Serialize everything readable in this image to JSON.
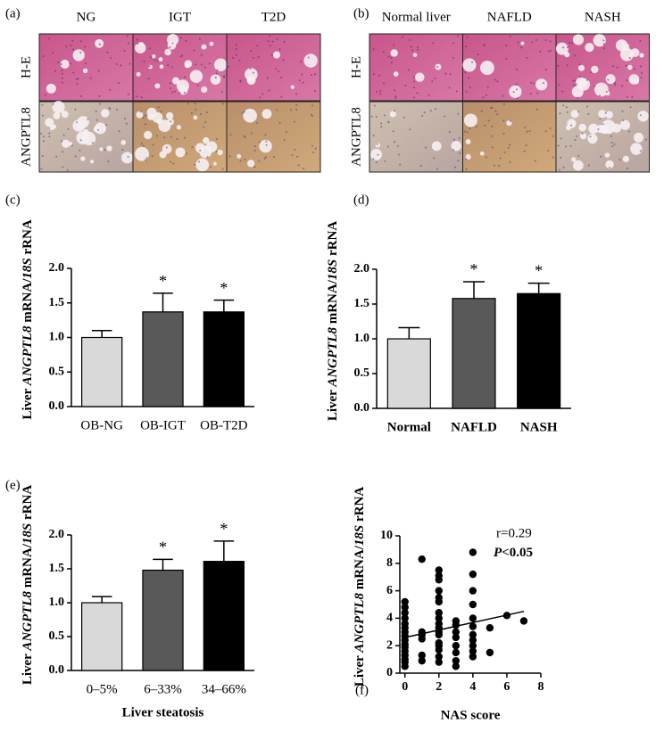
{
  "histology": [
    {
      "panel": "(a)",
      "columns": [
        "NG",
        "IGT",
        "T2D"
      ],
      "rows": [
        "H-E",
        "ANGPTL8"
      ]
    },
    {
      "panel": "(b)",
      "columns": [
        "Normal liver",
        "NAFLD",
        "NASH"
      ],
      "rows": [
        "H-E",
        "ANGPTL8"
      ]
    }
  ],
  "chart_data": [
    {
      "type": "bar",
      "panel": "(c)",
      "y_label": [
        "Liver ",
        "ANGPTL8",
        " mRNA/",
        "18S",
        " rRNA"
      ],
      "categories": [
        "OB-NG",
        "OB-IGT",
        "OB-T2D"
      ],
      "values": [
        1.0,
        1.37,
        1.37
      ],
      "errors": [
        0.1,
        0.27,
        0.17
      ],
      "colors": [
        "#d9d9d9",
        "#595959",
        "#000000"
      ],
      "significance": [
        null,
        "*",
        "*"
      ],
      "ylim": [
        0,
        2.0
      ],
      "yticks": [
        {
          "value": 0,
          "label": "0.0"
        },
        0.5,
        {
          "value": 1,
          "label": "1.0"
        },
        1.5,
        {
          "value": 2,
          "label": "2.0"
        }
      ]
    },
    {
      "type": "bar",
      "panel": "(d)",
      "y_label": [
        "Liver ",
        "ANGPTL8",
        " mRNA/",
        "18S",
        " rRNA"
      ],
      "categories": [
        "Normal",
        "NAFLD",
        "NASH"
      ],
      "values": [
        1.0,
        1.58,
        1.65
      ],
      "errors": [
        0.16,
        0.24,
        0.15
      ],
      "colors": [
        "#d9d9d9",
        "#595959",
        "#000000"
      ],
      "significance": [
        null,
        "*",
        "*"
      ],
      "bold_categories": true,
      "ylim": [
        0,
        2.0
      ],
      "yticks": [
        {
          "value": 0,
          "label": "0.0"
        },
        0.5,
        {
          "value": 1,
          "label": "1.0"
        },
        1.5,
        {
          "value": 2,
          "label": "2.0"
        }
      ]
    },
    {
      "type": "bar",
      "panel": "(e)",
      "y_label": [
        "Liver ",
        "ANGPTL8",
        " mRNA/",
        "18S",
        " rRNA"
      ],
      "x_label": "Liver steatosis",
      "categories": [
        "0–5%",
        "6–33%",
        "34–66%"
      ],
      "values": [
        1.0,
        1.48,
        1.61
      ],
      "errors": [
        0.09,
        0.16,
        0.3
      ],
      "colors": [
        "#d9d9d9",
        "#595959",
        "#000000"
      ],
      "significance": [
        null,
        "*",
        "*"
      ],
      "ylim": [
        0,
        2.0
      ],
      "yticks": [
        {
          "value": 0,
          "label": "0.0"
        },
        0.5,
        {
          "value": 1,
          "label": "1.0"
        },
        1.5,
        {
          "value": 2,
          "label": "2.0"
        }
      ]
    },
    {
      "type": "scatter",
      "panel": "(f)",
      "y_label": [
        "Liver ",
        "ANGPTL8",
        " mRNA/",
        "18S",
        " rRNA"
      ],
      "x_label": "NAS score",
      "annotations": [
        "r=0.29"
      ],
      "p_label": [
        "P",
        "<0.05"
      ],
      "x": [
        0,
        0,
        0,
        0,
        0,
        0,
        0,
        0,
        0,
        0,
        0,
        0,
        0,
        0,
        0,
        0,
        1,
        1,
        1,
        1,
        1,
        1,
        2,
        2,
        2,
        2,
        2,
        2,
        2,
        2,
        2,
        2,
        2,
        2,
        2,
        2,
        2,
        2,
        2,
        3,
        3,
        3,
        3,
        3,
        3,
        3,
        3,
        4,
        4,
        4,
        4,
        4,
        4,
        4,
        4,
        4,
        4,
        4,
        5,
        5,
        6,
        7
      ],
      "y": [
        0.5,
        0.8,
        1.0,
        1.3,
        1.6,
        1.9,
        2.1,
        2.4,
        2.7,
        3.0,
        3.3,
        3.6,
        4.0,
        4.4,
        4.8,
        5.2,
        0.9,
        1.3,
        2.5,
        2.8,
        3.0,
        8.3,
        0.8,
        1.2,
        1.7,
        2.0,
        2.2,
        2.8,
        3.0,
        3.3,
        3.6,
        4.0,
        4.4,
        5.2,
        5.5,
        6.0,
        6.8,
        7.1,
        7.5,
        0.5,
        0.9,
        1.5,
        2.0,
        2.6,
        3.0,
        3.5,
        3.8,
        1.2,
        1.6,
        2.0,
        2.4,
        2.8,
        3.4,
        4.0,
        5.0,
        6.0,
        7.2,
        8.8,
        1.5,
        3.3,
        4.2,
        3.8
      ],
      "trend": {
        "x": [
          0,
          7
        ],
        "y": [
          2.6,
          4.5
        ]
      },
      "color": "#000000",
      "xlim": [
        -0.3,
        8
      ],
      "xticks": [
        0,
        2,
        4,
        6,
        8
      ],
      "ylim": [
        0,
        10
      ],
      "yticks": [
        0,
        2,
        4,
        6,
        8,
        10
      ]
    }
  ]
}
